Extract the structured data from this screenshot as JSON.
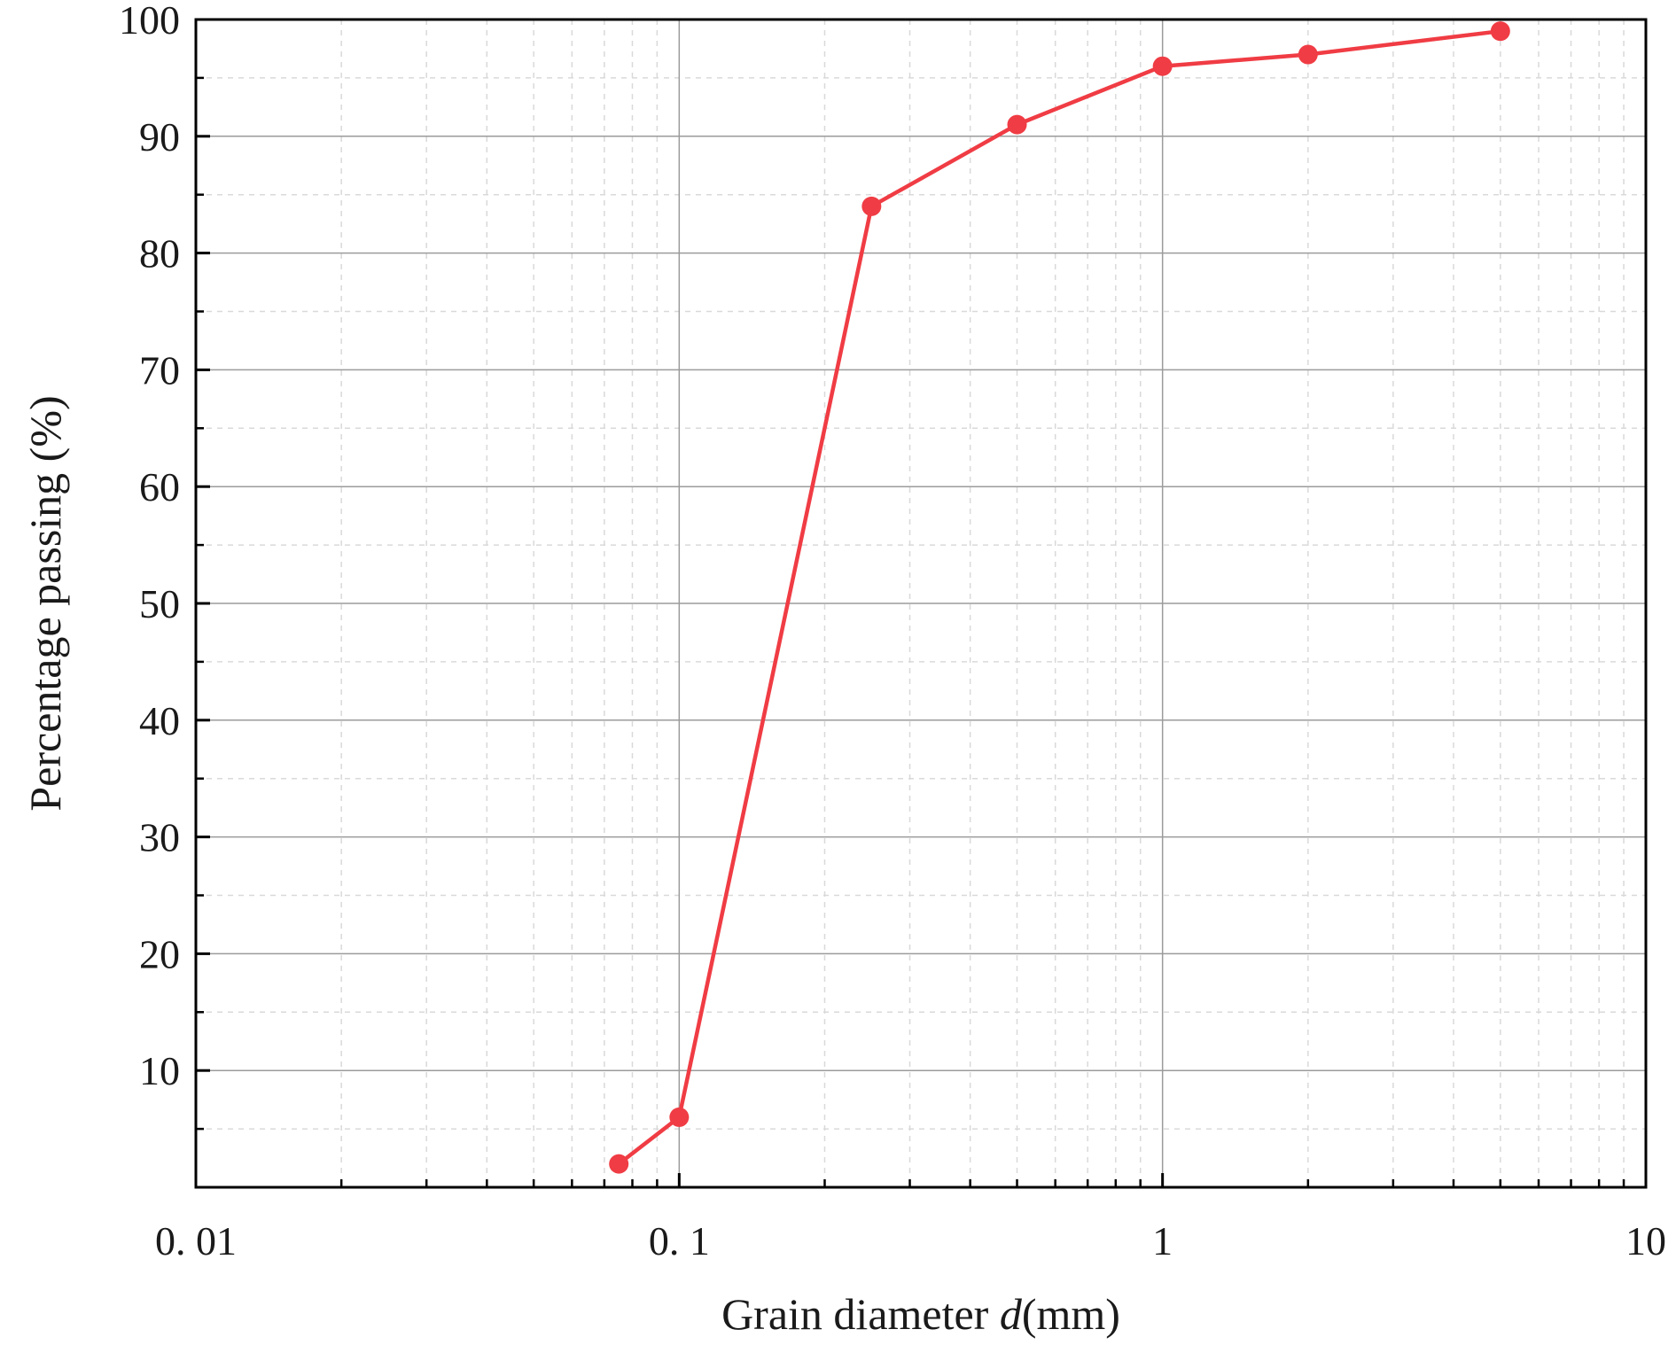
{
  "chart_data": {
    "type": "line",
    "xlabel_prefix": "Grain diameter ",
    "xlabel_var": "d",
    "xlabel_suffix": "(mm)",
    "ylabel": "Percentage passing (%)",
    "xscale": "log",
    "xlim": [
      0.01,
      10
    ],
    "ylim": [
      0,
      100
    ],
    "x_ticks": [
      {
        "value": 0.01,
        "label": "0. 01"
      },
      {
        "value": 0.1,
        "label": "0. 1"
      },
      {
        "value": 1,
        "label": "1"
      },
      {
        "value": 10,
        "label": "10"
      }
    ],
    "y_ticks": [
      {
        "value": 10,
        "label": "10"
      },
      {
        "value": 20,
        "label": "20"
      },
      {
        "value": 30,
        "label": "30"
      },
      {
        "value": 40,
        "label": "40"
      },
      {
        "value": 50,
        "label": "50"
      },
      {
        "value": 60,
        "label": "60"
      },
      {
        "value": 70,
        "label": "70"
      },
      {
        "value": 80,
        "label": "80"
      },
      {
        "value": 90,
        "label": "90"
      },
      {
        "value": 100,
        "label": "100"
      }
    ],
    "grid": true,
    "series": [
      {
        "color": "#f03c44",
        "x": [
          0.075,
          0.1,
          0.25,
          0.5,
          1,
          2,
          5
        ],
        "y": [
          2,
          6,
          84,
          91,
          96,
          97,
          99
        ]
      }
    ]
  }
}
